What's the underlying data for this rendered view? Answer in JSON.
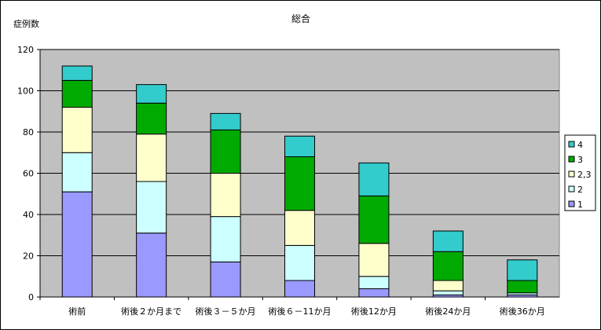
{
  "chart_data": {
    "type": "bar",
    "stacked": true,
    "title": "総合",
    "ylabel": "症例数",
    "xlabel": "",
    "ylim": [
      0,
      120
    ],
    "yticks": [
      0,
      20,
      40,
      60,
      80,
      100,
      120
    ],
    "grid": true,
    "legend_position": "right",
    "categories": [
      "術前",
      "術後２か月まで",
      "術後３－５か月",
      "術後６－11か月",
      "術後12か月",
      "術後24か月",
      "術後36か月"
    ],
    "series": [
      {
        "name": "1",
        "color": "#9999ff",
        "values": [
          51,
          31,
          17,
          8,
          4,
          1,
          1
        ]
      },
      {
        "name": "2",
        "color": "#ccffff",
        "values": [
          19,
          25,
          22,
          17,
          6,
          2,
          1
        ]
      },
      {
        "name": "2,3",
        "color": "#ffffcc",
        "values": [
          22,
          23,
          21,
          17,
          16,
          5,
          0
        ]
      },
      {
        "name": "3",
        "color": "#00aa00",
        "values": [
          13,
          15,
          21,
          26,
          23,
          14,
          6
        ]
      },
      {
        "name": "4",
        "color": "#33cccc",
        "values": [
          7,
          9,
          8,
          10,
          16,
          10,
          10
        ]
      }
    ],
    "plot_background": "#c0c0c0"
  }
}
